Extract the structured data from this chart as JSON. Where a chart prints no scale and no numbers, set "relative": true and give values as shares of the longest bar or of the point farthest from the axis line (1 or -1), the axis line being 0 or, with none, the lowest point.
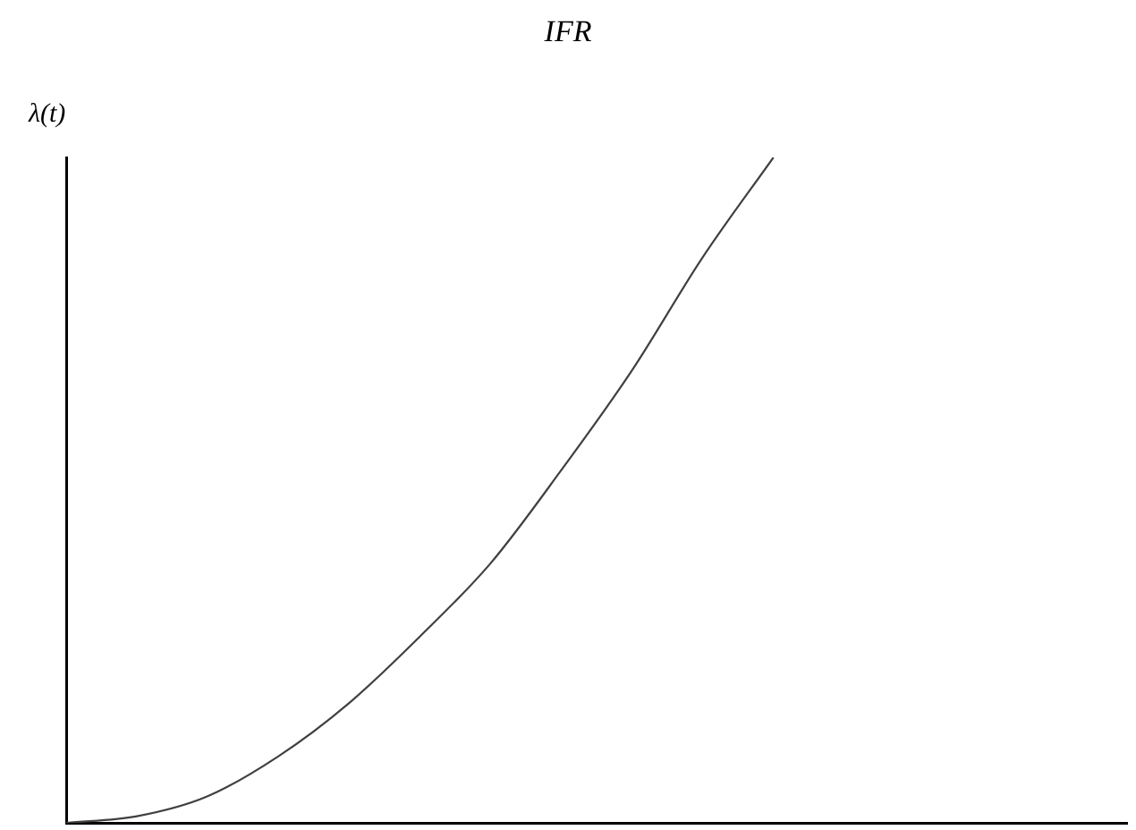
{
  "chart_data": {
    "type": "line",
    "title": "IFR",
    "ylabel": "λ(t)",
    "relative": true,
    "grid": false,
    "legend": false,
    "marker": "none",
    "line_style": "solid",
    "categories": [
      null,
      null,
      null,
      null,
      null,
      null,
      null,
      null,
      null,
      null,
      null,
      null,
      null,
      null,
      null,
      null
    ],
    "series": [
      {
        "color": "#404040",
        "values": [
          0,
          0.01,
          0.04,
          0.1,
          0.18,
          0.28,
          0.39,
          0.53,
          0.68,
          0.85,
          1,
          null,
          null,
          null,
          null,
          null
        ]
      }
    ]
  }
}
